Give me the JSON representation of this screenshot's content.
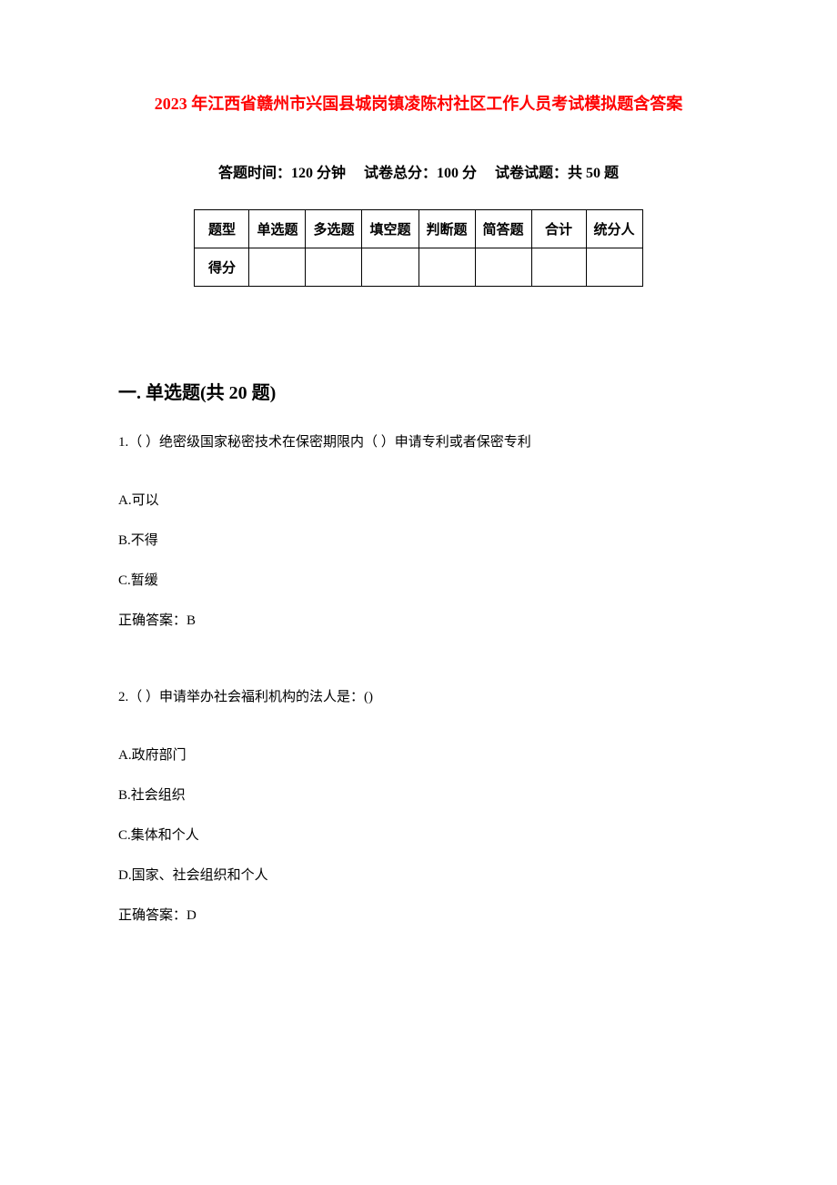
{
  "title": "2023 年江西省赣州市兴国县城岗镇凌陈村社区工作人员考试模拟题含答案",
  "exam_info": {
    "time_label": "答题时间：",
    "time_value": "120 分钟",
    "total_label": "试卷总分：",
    "total_value": "100 分",
    "count_label": "试卷试题：",
    "count_value": "共 50 题"
  },
  "score_table": {
    "header_row": [
      "题型",
      "单选题",
      "多选题",
      "填空题",
      "判断题",
      "简答题",
      "合计",
      "统分人"
    ],
    "score_row_label": "得分",
    "columns_count": 8,
    "border_color": "#000000",
    "background_color": "#ffffff",
    "cell_font_size": 15
  },
  "section1": {
    "heading": "一. 单选题(共 20 题)",
    "questions": [
      {
        "text": "1.（ ）绝密级国家秘密技术在保密期限内（  ）申请专利或者保密专利",
        "options": [
          "A.可以",
          "B.不得",
          "C.暂缓"
        ],
        "answer": "正确答案：B"
      },
      {
        "text": "2.（ ）申请举办社会福利机构的法人是：()",
        "options": [
          "A.政府部门",
          "B.社会组织",
          "C.集体和个人",
          "D.国家、社会组织和个人"
        ],
        "answer": "正确答案：D"
      }
    ]
  },
  "colors": {
    "title_color": "#ff0000",
    "text_color": "#000000",
    "background_color": "#ffffff"
  },
  "typography": {
    "title_fontsize": 18,
    "info_fontsize": 16,
    "heading_fontsize": 20,
    "body_fontsize": 15
  }
}
